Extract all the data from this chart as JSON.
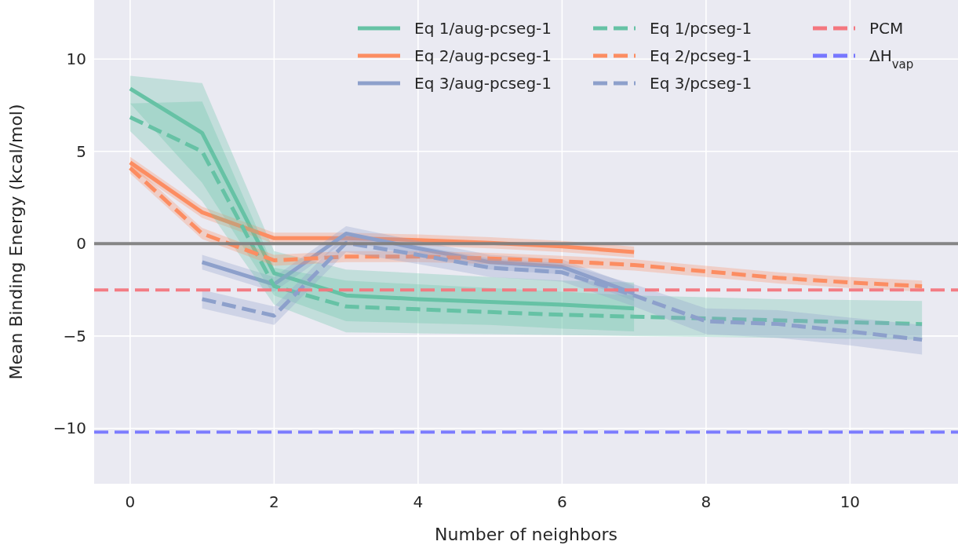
{
  "chart_data": {
    "type": "line",
    "xlabel": "Number of neighbors",
    "ylabel": "Mean Binding Energy (kcal/mol)",
    "xlim": [
      -0.5,
      11.5
    ],
    "ylim": [
      -13,
      13.2
    ],
    "xticks": [
      0,
      2,
      4,
      6,
      8,
      10
    ],
    "yticks": [
      {
        "value": -10,
        "label": "−10"
      },
      {
        "value": -5,
        "label": "−5"
      },
      0,
      5,
      10
    ],
    "grid": true,
    "legend": "top right",
    "series": [
      {
        "name": "Eq 1/aug-pcseg-1",
        "color": "#66c2a5",
        "line_style": "solid",
        "x": [
          0,
          1,
          2,
          3,
          4,
          5,
          6,
          7
        ],
        "values": [
          8.4,
          6.0,
          -1.6,
          -2.8,
          -3.0,
          -3.15,
          -3.3,
          -3.5
        ],
        "lower": [
          7.6,
          3.3,
          -2.8,
          -4.2,
          -4.3,
          -4.4,
          -4.6,
          -4.75
        ],
        "upper": [
          9.1,
          8.7,
          -0.4,
          -1.4,
          -1.6,
          -1.8,
          -2.0,
          -2.1
        ]
      },
      {
        "name": "Eq 2/aug-pcseg-1",
        "color": "#fc8d62",
        "line_style": "solid",
        "x": [
          0,
          1,
          2,
          3,
          4,
          5,
          6,
          7
        ],
        "values": [
          4.4,
          1.7,
          0.3,
          0.3,
          0.2,
          0.05,
          -0.15,
          -0.45
        ],
        "lower": [
          4.1,
          1.4,
          0.0,
          0.0,
          -0.1,
          -0.25,
          -0.45,
          -0.75
        ],
        "upper": [
          4.7,
          2.0,
          0.6,
          0.6,
          0.5,
          0.35,
          0.15,
          -0.15
        ]
      },
      {
        "name": "Eq 3/aug-pcseg-1",
        "color": "#8da0cb",
        "line_style": "solid",
        "x": [
          1,
          2,
          3,
          4,
          5,
          6,
          7
        ],
        "values": [
          -1.0,
          -2.2,
          0.55,
          -0.25,
          -1.0,
          -1.25,
          -2.7
        ],
        "lower": [
          -1.4,
          -2.6,
          0.15,
          -0.65,
          -1.4,
          -1.65,
          -3.1
        ],
        "upper": [
          -0.6,
          -1.8,
          0.95,
          0.15,
          -0.6,
          -0.85,
          -2.3
        ]
      },
      {
        "name": "Eq 1/pcseg-1",
        "color": "#66c2a5",
        "line_style": "dashed",
        "x": [
          0,
          1,
          2,
          3,
          4,
          5,
          6,
          7,
          8,
          9,
          10,
          11
        ],
        "values": [
          6.85,
          5.0,
          -2.3,
          -3.4,
          -3.55,
          -3.7,
          -3.85,
          -3.95,
          -4.05,
          -4.15,
          -4.25,
          -4.35
        ],
        "lower": [
          6.1,
          2.3,
          -3.3,
          -4.8,
          -4.85,
          -4.9,
          -4.95,
          -5.0,
          -5.05,
          -5.1,
          -5.15,
          -5.2
        ],
        "upper": [
          7.6,
          7.7,
          -1.3,
          -2.0,
          -2.2,
          -2.4,
          -2.6,
          -2.8,
          -2.9,
          -3.0,
          -3.05,
          -3.1
        ]
      },
      {
        "name": "Eq 2/pcseg-1",
        "color": "#fc8d62",
        "line_style": "dashed",
        "x": [
          0,
          1,
          2,
          3,
          4,
          5,
          6,
          7,
          8,
          9,
          10,
          11
        ],
        "values": [
          4.1,
          0.55,
          -0.9,
          -0.7,
          -0.7,
          -0.8,
          -0.95,
          -1.15,
          -1.5,
          -1.85,
          -2.1,
          -2.3
        ],
        "lower": [
          3.8,
          0.25,
          -1.2,
          -1.0,
          -1.0,
          -1.1,
          -1.25,
          -1.45,
          -1.8,
          -2.15,
          -2.4,
          -2.6
        ],
        "upper": [
          4.4,
          0.85,
          -0.6,
          -0.4,
          -0.4,
          -0.5,
          -0.65,
          -0.85,
          -1.2,
          -1.55,
          -1.8,
          -2.0
        ]
      },
      {
        "name": "Eq 3/pcseg-1",
        "color": "#8da0cb",
        "line_style": "dashed",
        "x": [
          1,
          2,
          3,
          4,
          5,
          6,
          7,
          8,
          9,
          10,
          11
        ],
        "values": [
          -3.0,
          -3.9,
          0.05,
          -0.6,
          -1.3,
          -1.55,
          -2.8,
          -4.2,
          -4.35,
          -4.75,
          -5.2
        ],
        "lower": [
          -3.5,
          -4.4,
          -0.45,
          -1.1,
          -1.8,
          -2.05,
          -3.4,
          -4.9,
          -5.1,
          -5.5,
          -6.0
        ],
        "upper": [
          -2.5,
          -3.4,
          0.55,
          -0.1,
          -0.8,
          -1.05,
          -2.2,
          -3.5,
          -3.6,
          -4.0,
          -4.4
        ]
      }
    ],
    "ref_lines": [
      {
        "axis": "y",
        "value": 0,
        "label": null,
        "color": "#808080",
        "line_style": "solid"
      },
      {
        "axis": "y",
        "value": -2.5,
        "label": "PCM",
        "color": "#f4777f",
        "line_style": "dashed"
      },
      {
        "axis": "y",
        "value": -10.2,
        "label": "ΔH$_{vap}$",
        "color": "#7777ff",
        "line_style": "dashed"
      }
    ]
  }
}
